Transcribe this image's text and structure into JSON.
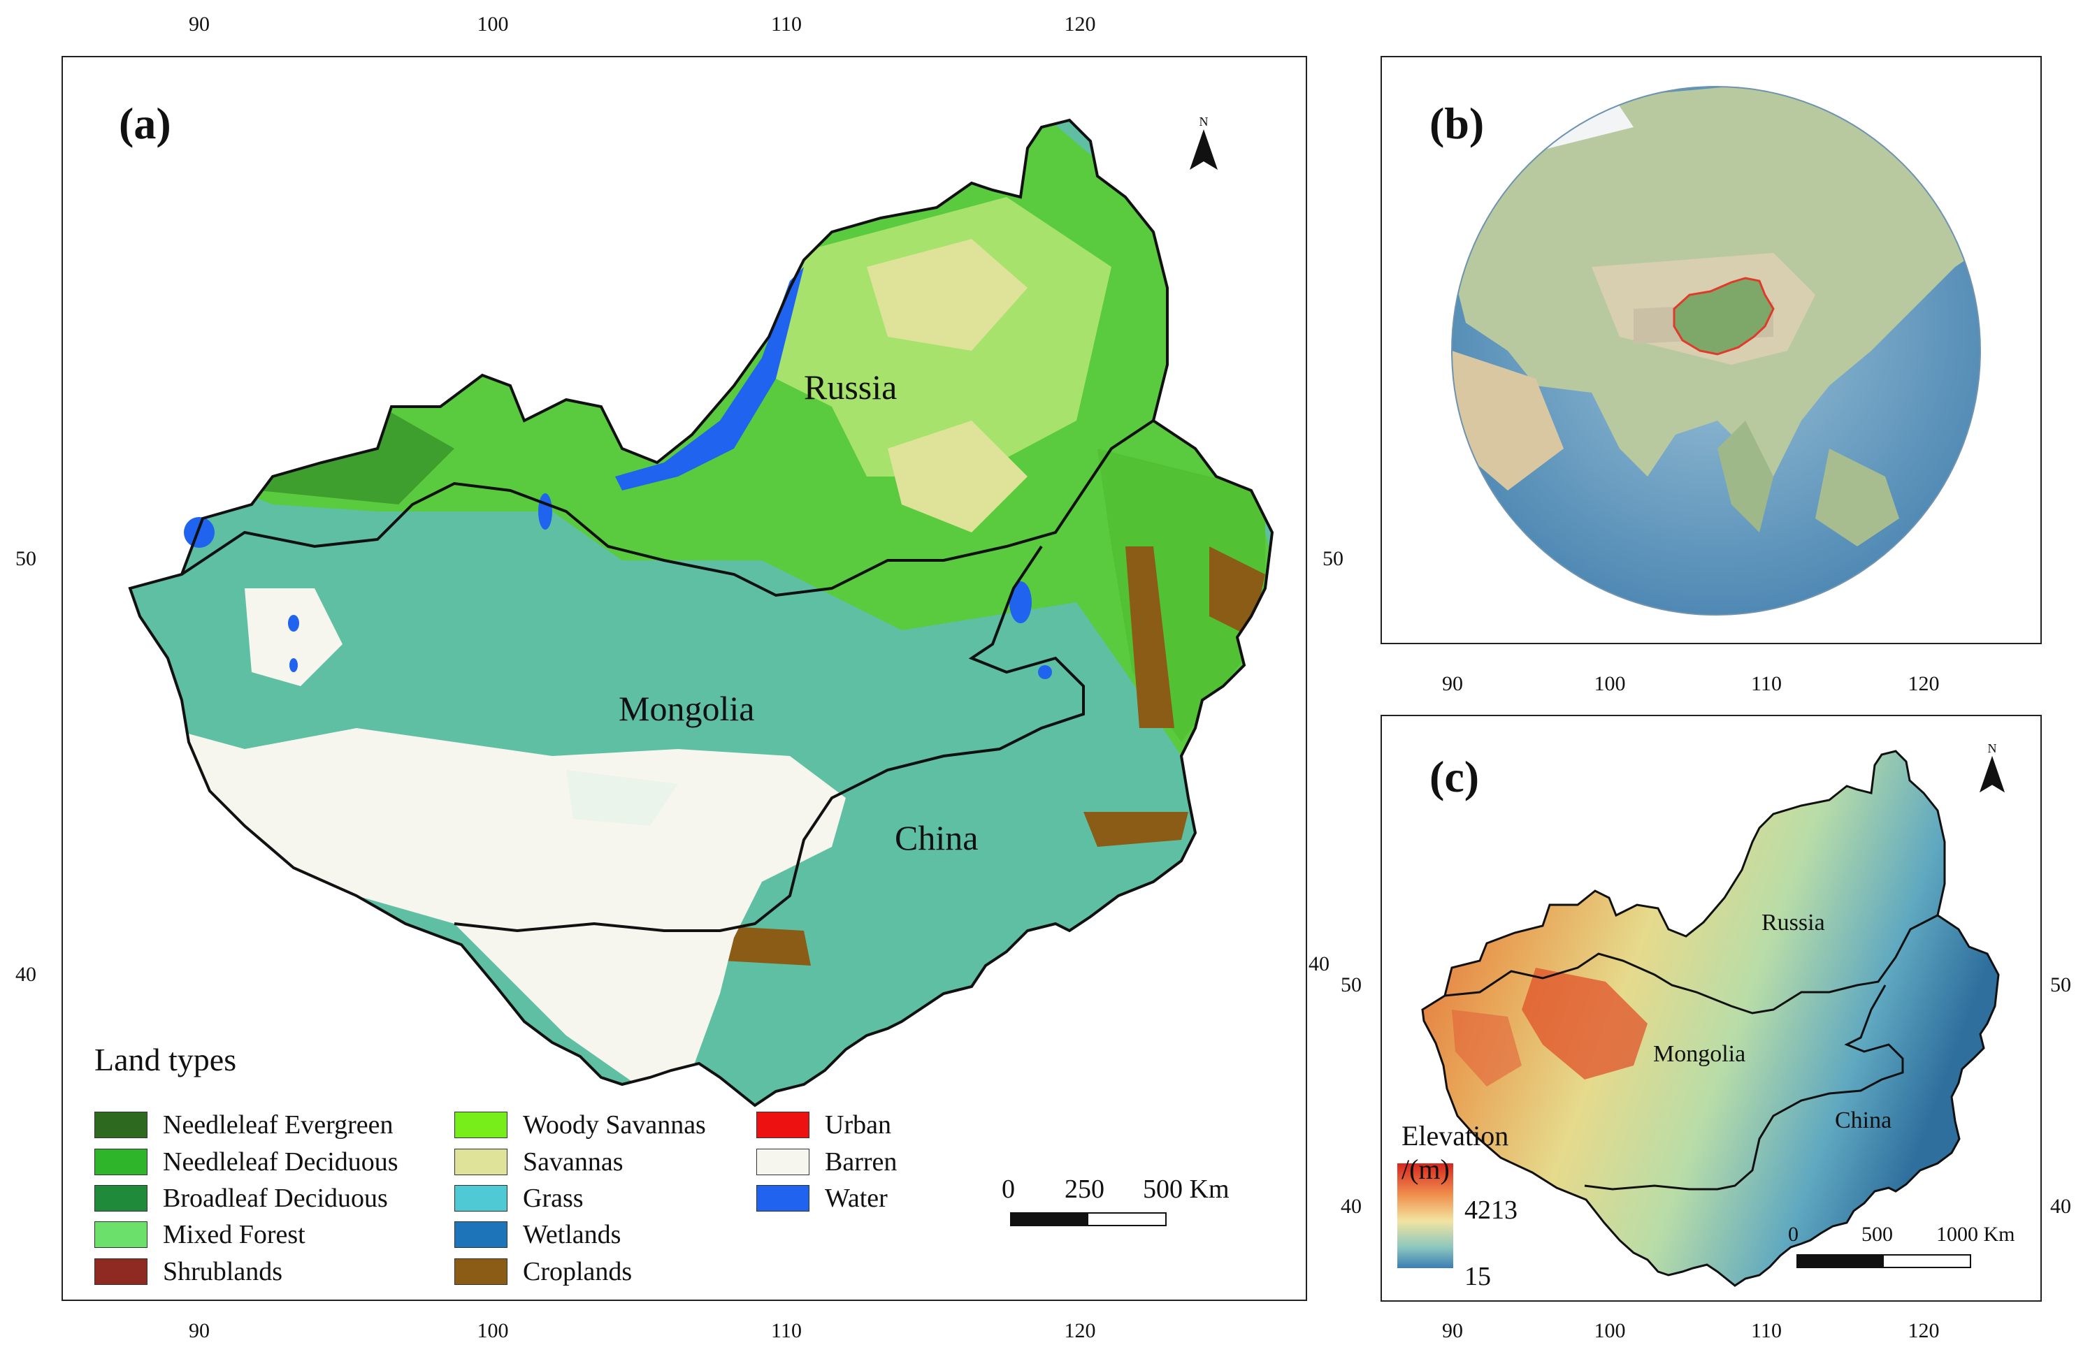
{
  "panel_a": {
    "label": "(a)",
    "top_ticks": [
      "90",
      "100",
      "110",
      "120"
    ],
    "bottom_ticks": [
      "90",
      "100",
      "110",
      "120"
    ],
    "left_ticks": [
      "50",
      "40"
    ],
    "right_ticks": [
      "50",
      "40"
    ],
    "countries": {
      "russia": "Russia",
      "mongolia": "Mongolia",
      "china": "China"
    },
    "legend": {
      "title": "Land types",
      "items": [
        {
          "label": "Needleleaf Evergreen",
          "color": "#2d6a1f"
        },
        {
          "label": "Needleleaf Deciduous",
          "color": "#2fb52a"
        },
        {
          "label": "Broadleaf Deciduous",
          "color": "#1f8a3a"
        },
        {
          "label": "Mixed Forest",
          "color": "#6be06b"
        },
        {
          "label": "Shrublands",
          "color": "#8e2a22"
        },
        {
          "label": "Woody Savannas",
          "color": "#77ee1a"
        },
        {
          "label": "Savannas",
          "color": "#dfe39a"
        },
        {
          "label": "Grass",
          "color": "#4fc9d4"
        },
        {
          "label": "Wetlands",
          "color": "#1d74b8"
        },
        {
          "label": "Croplands",
          "color": "#8a5c16"
        },
        {
          "label": "Urban",
          "color": "#ee1111"
        },
        {
          "label": "Barren",
          "color": "#f6f6ee"
        },
        {
          "label": "Water",
          "color": "#1f63ef"
        }
      ]
    },
    "scale": {
      "zero": "0",
      "mid": "250",
      "end": "500 Km"
    },
    "north_letter": "N"
  },
  "panel_b": {
    "label": "(b)"
  },
  "panel_c": {
    "label": "(c)",
    "top_ticks": [
      "90",
      "100",
      "110",
      "120"
    ],
    "bottom_ticks": [
      "90",
      "100",
      "110",
      "120"
    ],
    "left_ticks": [
      "50",
      "40"
    ],
    "right_ticks": [
      "50",
      "40"
    ],
    "countries": {
      "russia": "Russia",
      "mongolia": "Mongolia",
      "china": "China"
    },
    "elevation": {
      "title_line1": "Elevation",
      "title_line2": "/(m)",
      "max": "4213",
      "min": "15"
    },
    "scale": {
      "zero": "0",
      "mid": "500",
      "end": "1000 Km"
    },
    "north_letter": "N"
  }
}
